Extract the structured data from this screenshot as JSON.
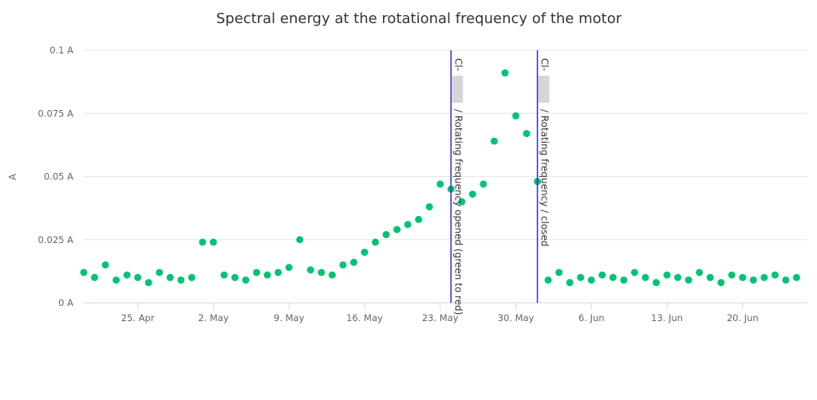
{
  "chart_data": {
    "type": "scatter",
    "title": "Spectral energy at the rotational frequency of the motor",
    "ylabel": "A",
    "xlabel": "",
    "ylim": [
      0,
      0.1
    ],
    "yticks": [
      {
        "value": 0,
        "label": "0 A"
      },
      {
        "value": 0.025,
        "label": "0.025 A"
      },
      {
        "value": 0.05,
        "label": "0.05 A"
      },
      {
        "value": 0.075,
        "label": "0.075 A"
      },
      {
        "value": 0.1,
        "label": "0.1 A"
      }
    ],
    "xlim": [
      "2020-04-20",
      "2020-06-26"
    ],
    "xticks": [
      {
        "date": "2020-04-25",
        "label": "25. Apr"
      },
      {
        "date": "2020-05-02",
        "label": "2. May"
      },
      {
        "date": "2020-05-09",
        "label": "9. May"
      },
      {
        "date": "2020-05-16",
        "label": "16. May"
      },
      {
        "date": "2020-05-23",
        "label": "23. May"
      },
      {
        "date": "2020-05-30",
        "label": "30. May"
      },
      {
        "date": "2020-06-06",
        "label": "6. Jun"
      },
      {
        "date": "2020-06-13",
        "label": "13. Jun"
      },
      {
        "date": "2020-06-20",
        "label": "20. Jun"
      }
    ],
    "grid": true,
    "color": "#00c373",
    "events": [
      {
        "date": "2020-05-24",
        "label": "Cl-",
        "detail": "/ Rotating frequency opened (green to red)"
      },
      {
        "date": "2020-06-01",
        "label": "Cl-",
        "detail": "/ Rotating frequency / closed"
      }
    ],
    "series": [
      {
        "points": [
          [
            "2020-04-20",
            0.012
          ],
          [
            "2020-04-21",
            0.01
          ],
          [
            "2020-04-22",
            0.015
          ],
          [
            "2020-04-23",
            0.009
          ],
          [
            "2020-04-24",
            0.011
          ],
          [
            "2020-04-25",
            0.01
          ],
          [
            "2020-04-26",
            0.008
          ],
          [
            "2020-04-27",
            0.012
          ],
          [
            "2020-04-28",
            0.01
          ],
          [
            "2020-04-29",
            0.009
          ],
          [
            "2020-04-30",
            0.01
          ],
          [
            "2020-05-01",
            0.024
          ],
          [
            "2020-05-02",
            0.024
          ],
          [
            "2020-05-03",
            0.011
          ],
          [
            "2020-05-04",
            0.01
          ],
          [
            "2020-05-05",
            0.009
          ],
          [
            "2020-05-06",
            0.012
          ],
          [
            "2020-05-07",
            0.011
          ],
          [
            "2020-05-08",
            0.012
          ],
          [
            "2020-05-09",
            0.014
          ],
          [
            "2020-05-10",
            0.025
          ],
          [
            "2020-05-11",
            0.013
          ],
          [
            "2020-05-12",
            0.012
          ],
          [
            "2020-05-13",
            0.011
          ],
          [
            "2020-05-14",
            0.015
          ],
          [
            "2020-05-15",
            0.016
          ],
          [
            "2020-05-16",
            0.02
          ],
          [
            "2020-05-17",
            0.024
          ],
          [
            "2020-05-18",
            0.027
          ],
          [
            "2020-05-19",
            0.029
          ],
          [
            "2020-05-20",
            0.031
          ],
          [
            "2020-05-21",
            0.033
          ],
          [
            "2020-05-22",
            0.038
          ],
          [
            "2020-05-23",
            0.047
          ],
          [
            "2020-05-24",
            0.045
          ],
          [
            "2020-05-25",
            0.04
          ],
          [
            "2020-05-26",
            0.043
          ],
          [
            "2020-05-27",
            0.047
          ],
          [
            "2020-05-28",
            0.064
          ],
          [
            "2020-05-29",
            0.091
          ],
          [
            "2020-05-30",
            0.074
          ],
          [
            "2020-05-31",
            0.067
          ],
          [
            "2020-06-01",
            0.048
          ],
          [
            "2020-06-02",
            0.009
          ],
          [
            "2020-06-03",
            0.012
          ],
          [
            "2020-06-04",
            0.008
          ],
          [
            "2020-06-05",
            0.01
          ],
          [
            "2020-06-06",
            0.009
          ],
          [
            "2020-06-07",
            0.011
          ],
          [
            "2020-06-08",
            0.01
          ],
          [
            "2020-06-09",
            0.009
          ],
          [
            "2020-06-10",
            0.012
          ],
          [
            "2020-06-11",
            0.01
          ],
          [
            "2020-06-12",
            0.008
          ],
          [
            "2020-06-13",
            0.011
          ],
          [
            "2020-06-14",
            0.01
          ],
          [
            "2020-06-15",
            0.009
          ],
          [
            "2020-06-16",
            0.012
          ],
          [
            "2020-06-17",
            0.01
          ],
          [
            "2020-06-18",
            0.008
          ],
          [
            "2020-06-19",
            0.011
          ],
          [
            "2020-06-20",
            0.01
          ],
          [
            "2020-06-21",
            0.009
          ],
          [
            "2020-06-22",
            0.01
          ],
          [
            "2020-06-23",
            0.011
          ],
          [
            "2020-06-24",
            0.009
          ],
          [
            "2020-06-25",
            0.01
          ]
        ]
      }
    ]
  }
}
